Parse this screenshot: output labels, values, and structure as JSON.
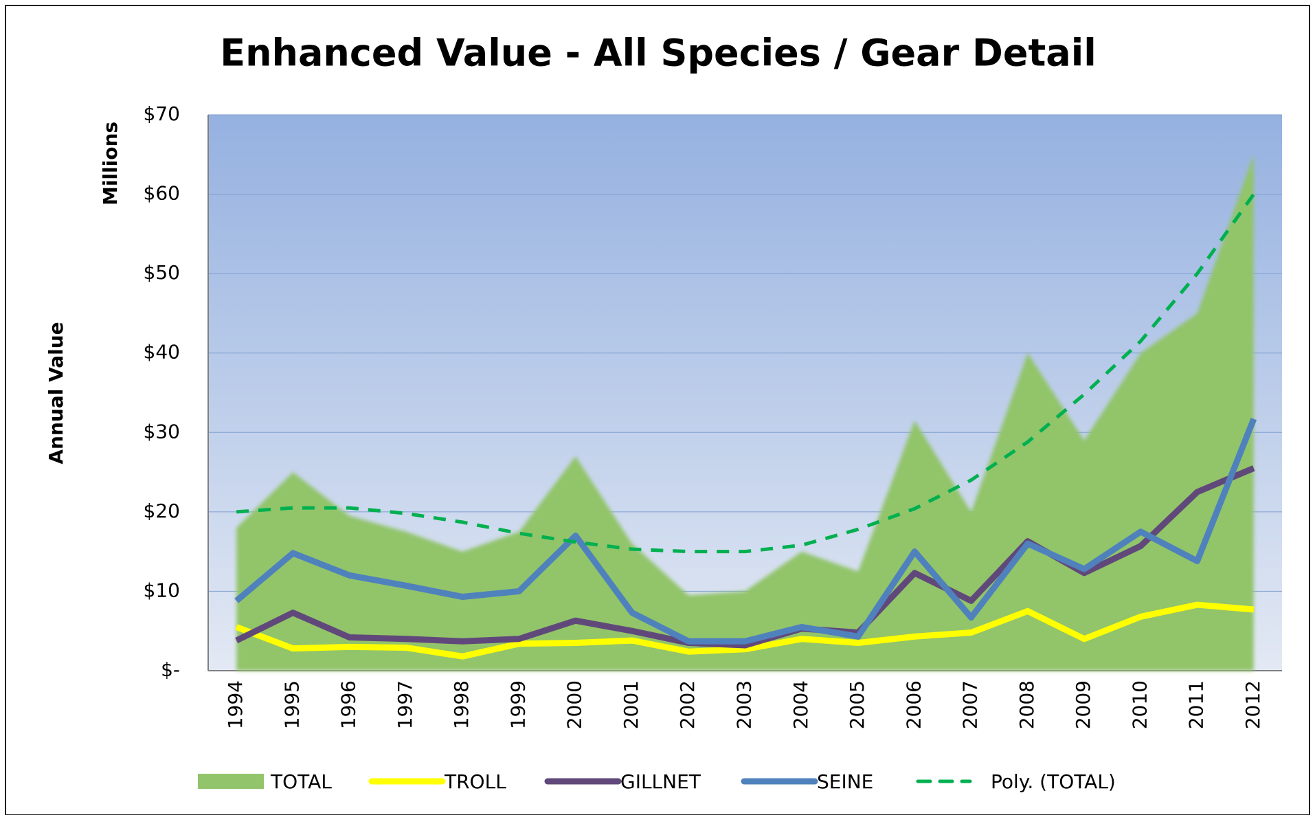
{
  "chart_data": {
    "type": "line",
    "title": "Enhanced Value - All Species / Gear Detail",
    "y_axis_label": "Annual Value",
    "y_axis_units": "Millions",
    "categories": [
      "1994",
      "1995",
      "1996",
      "1997",
      "1998",
      "1999",
      "2000",
      "2001",
      "2002",
      "2003",
      "2004",
      "2005",
      "2006",
      "2007",
      "2008",
      "2009",
      "2010",
      "2011",
      "2012"
    ],
    "series": [
      {
        "name": "TOTAL",
        "style": "area",
        "color": "#92c46b",
        "values": [
          18,
          25,
          19.5,
          17.5,
          15,
          17.5,
          27,
          16,
          9.5,
          10,
          15,
          12.5,
          31.5,
          20,
          40,
          29,
          40,
          45,
          65
        ]
      },
      {
        "name": "TROLL",
        "style": "line",
        "color": "#ffff00",
        "values": [
          5.5,
          2.8,
          3.0,
          2.9,
          1.8,
          3.4,
          3.5,
          3.8,
          2.4,
          2.7,
          4.0,
          3.5,
          4.3,
          4.8,
          7.5,
          4.0,
          6.8,
          8.3,
          7.7
        ]
      },
      {
        "name": "GILLNET",
        "style": "line",
        "color": "#60497a",
        "values": [
          3.8,
          7.3,
          4.2,
          4.0,
          3.7,
          4.0,
          6.3,
          5.0,
          3.5,
          3.2,
          5.3,
          4.8,
          12.3,
          8.8,
          16.3,
          12.3,
          15.7,
          22.5,
          25.5
        ]
      },
      {
        "name": "SEINE",
        "style": "line",
        "color": "#4f81bd",
        "values": [
          8.8,
          14.8,
          12.0,
          10.7,
          9.3,
          10.0,
          17.0,
          7.3,
          3.7,
          3.7,
          5.5,
          4.3,
          15.0,
          6.7,
          16.0,
          12.8,
          17.5,
          13.8,
          31.7
        ]
      },
      {
        "name": "Poly. (TOTAL)",
        "style": "dashed",
        "color": "#00b050",
        "values": [
          20,
          20.5,
          20.5,
          19.8,
          18.7,
          17.3,
          16.2,
          15.3,
          15.0,
          15.0,
          15.8,
          17.8,
          20.4,
          24.0,
          28.8,
          34.8,
          41.5,
          50,
          60
        ]
      }
    ],
    "ylim": [
      0,
      70
    ],
    "yticks": [
      {
        "value": 0,
        "label": "$-"
      },
      {
        "value": 10,
        "label": "$10"
      },
      {
        "value": 20,
        "label": "$20"
      },
      {
        "value": 30,
        "label": "$30"
      },
      {
        "value": 40,
        "label": "$40"
      },
      {
        "value": 50,
        "label": "$50"
      },
      {
        "value": 60,
        "label": "$60"
      },
      {
        "value": 70,
        "label": "$70"
      }
    ],
    "grid": true,
    "legend": "bottom"
  }
}
